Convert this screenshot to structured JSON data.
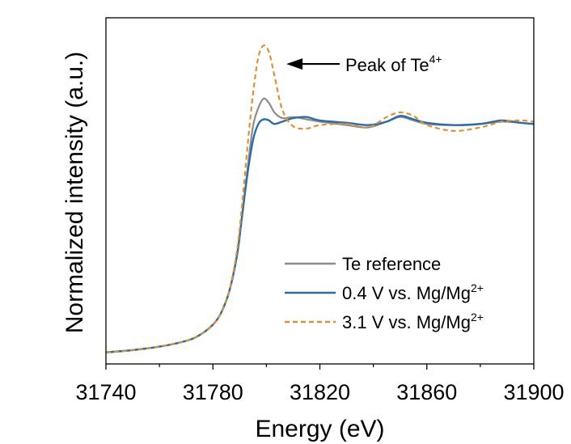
{
  "chart_data": {
    "type": "line",
    "title": "",
    "xlabel": "Energy (eV)",
    "ylabel": "Normalized intensity (a.u.)",
    "xlim": [
      31740,
      31900
    ],
    "ylim": [
      -0.05,
      1.45
    ],
    "xticks": [
      31740,
      31780,
      31820,
      31860,
      31900
    ],
    "yticks_shown": false,
    "legend_position": "lower-right",
    "annotation": {
      "text": "Peak of Te",
      "superscript": "4+",
      "points_to": [
        31799,
        1.25
      ]
    },
    "series": [
      {
        "name": "Te reference",
        "color": "#8c8c8c",
        "style": "solid",
        "x": [
          31740,
          31750,
          31760,
          31770,
          31775,
          31780,
          31783,
          31786,
          31789,
          31791,
          31793,
          31795,
          31797,
          31799,
          31801,
          31803,
          31806,
          31810,
          31815,
          31820,
          31830,
          31838,
          31845,
          31850,
          31855,
          31860,
          31870,
          31880,
          31888,
          31895,
          31900
        ],
        "y": [
          0.0,
          0.01,
          0.025,
          0.05,
          0.075,
          0.12,
          0.17,
          0.26,
          0.42,
          0.6,
          0.8,
          0.98,
          1.06,
          1.1,
          1.08,
          1.04,
          1.015,
          1.02,
          1.01,
          1.0,
          0.985,
          0.975,
          1.0,
          1.02,
          1.005,
          0.99,
          0.985,
          0.99,
          1.0,
          0.995,
          0.99
        ]
      },
      {
        "name": "0.4 V vs. Mg/Mg",
        "superscript": "2+",
        "color": "#2e6ca4",
        "style": "solid",
        "x": [
          31740,
          31750,
          31760,
          31770,
          31775,
          31780,
          31783,
          31786,
          31789,
          31791,
          31793,
          31795,
          31797,
          31799,
          31801,
          31803,
          31806,
          31810,
          31815,
          31820,
          31830,
          31838,
          31845,
          31850,
          31855,
          31860,
          31870,
          31880,
          31888,
          31895,
          31900
        ],
        "y": [
          0.0,
          0.01,
          0.025,
          0.05,
          0.075,
          0.12,
          0.17,
          0.26,
          0.42,
          0.6,
          0.78,
          0.92,
          0.99,
          1.01,
          1.005,
          0.99,
          1.0,
          1.015,
          1.02,
          1.005,
          0.995,
          0.985,
          1.0,
          1.025,
          1.01,
          0.995,
          0.985,
          0.99,
          1.005,
          0.995,
          0.99
        ]
      },
      {
        "name": "3.1 V vs. Mg/Mg",
        "superscript": "2+",
        "color": "#d9923a",
        "style": "dashed",
        "x": [
          31740,
          31750,
          31760,
          31770,
          31775,
          31780,
          31783,
          31786,
          31789,
          31791,
          31793,
          31795,
          31797,
          31799,
          31801,
          31803,
          31806,
          31810,
          31815,
          31820,
          31830,
          31838,
          31845,
          31850,
          31855,
          31860,
          31870,
          31880,
          31888,
          31895,
          31900
        ],
        "y": [
          0.0,
          0.01,
          0.025,
          0.05,
          0.075,
          0.12,
          0.17,
          0.26,
          0.44,
          0.65,
          0.9,
          1.12,
          1.28,
          1.33,
          1.3,
          1.2,
          1.05,
          0.98,
          0.97,
          0.985,
          0.99,
          0.975,
          1.02,
          1.04,
          1.025,
          0.985,
          0.96,
          0.975,
          1.0,
          1.005,
          1.0
        ]
      }
    ]
  }
}
